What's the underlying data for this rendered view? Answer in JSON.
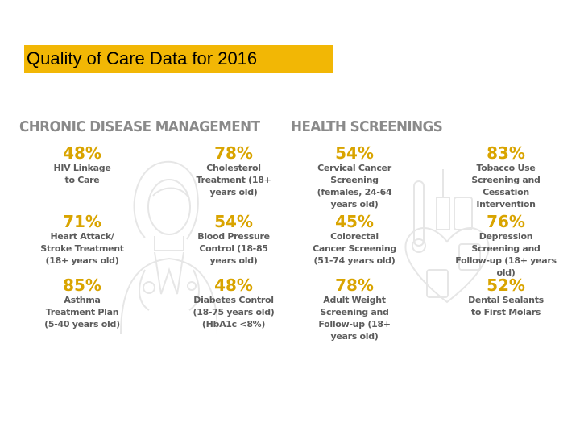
{
  "slide": {
    "title": "Quality of Care Data for 2016"
  },
  "chronic": {
    "heading": "CHRONIC DISEASE MANAGEMENT",
    "stats": [
      {
        "pct": "48%",
        "label": "HIV Linkage to Care"
      },
      {
        "pct": "78%",
        "label": "Cholesterol Treatment (18+ years old)"
      },
      {
        "pct": "71%",
        "label": "Heart Attack/ Stroke Treatment (18+ years old)"
      },
      {
        "pct": "54%",
        "label": "Blood Pressure Control (18-85 years old)"
      },
      {
        "pct": "85%",
        "label": "Asthma Treatment Plan (5-40 years old)"
      },
      {
        "pct": "48%",
        "label": "Diabetes Control (18-75 years old) (HbA1c <8%)"
      }
    ]
  },
  "screenings": {
    "heading": "HEALTH SCREENINGS",
    "stats": [
      {
        "pct": "54%",
        "label": "Cervical Cancer Screening (females, 24-64 years old)"
      },
      {
        "pct": "83%",
        "label": "Tobacco Use Screening and Cessation Intervention"
      },
      {
        "pct": "45%",
        "label": "Colorectal Cancer Screening (51-74 years old)"
      },
      {
        "pct": "76%",
        "label": "Depression Screening and Follow-up (18+ years old)"
      },
      {
        "pct": "78%",
        "label": "Adult Weight Screening and Follow-up (18+ years old)"
      },
      {
        "pct": "52%",
        "label": "Dental Sealants to First Molars"
      }
    ]
  },
  "colors": {
    "accent": "#f2b705",
    "percent": "#d9a400",
    "text": "#5c5c5c",
    "heading": "#8a8a8a"
  }
}
